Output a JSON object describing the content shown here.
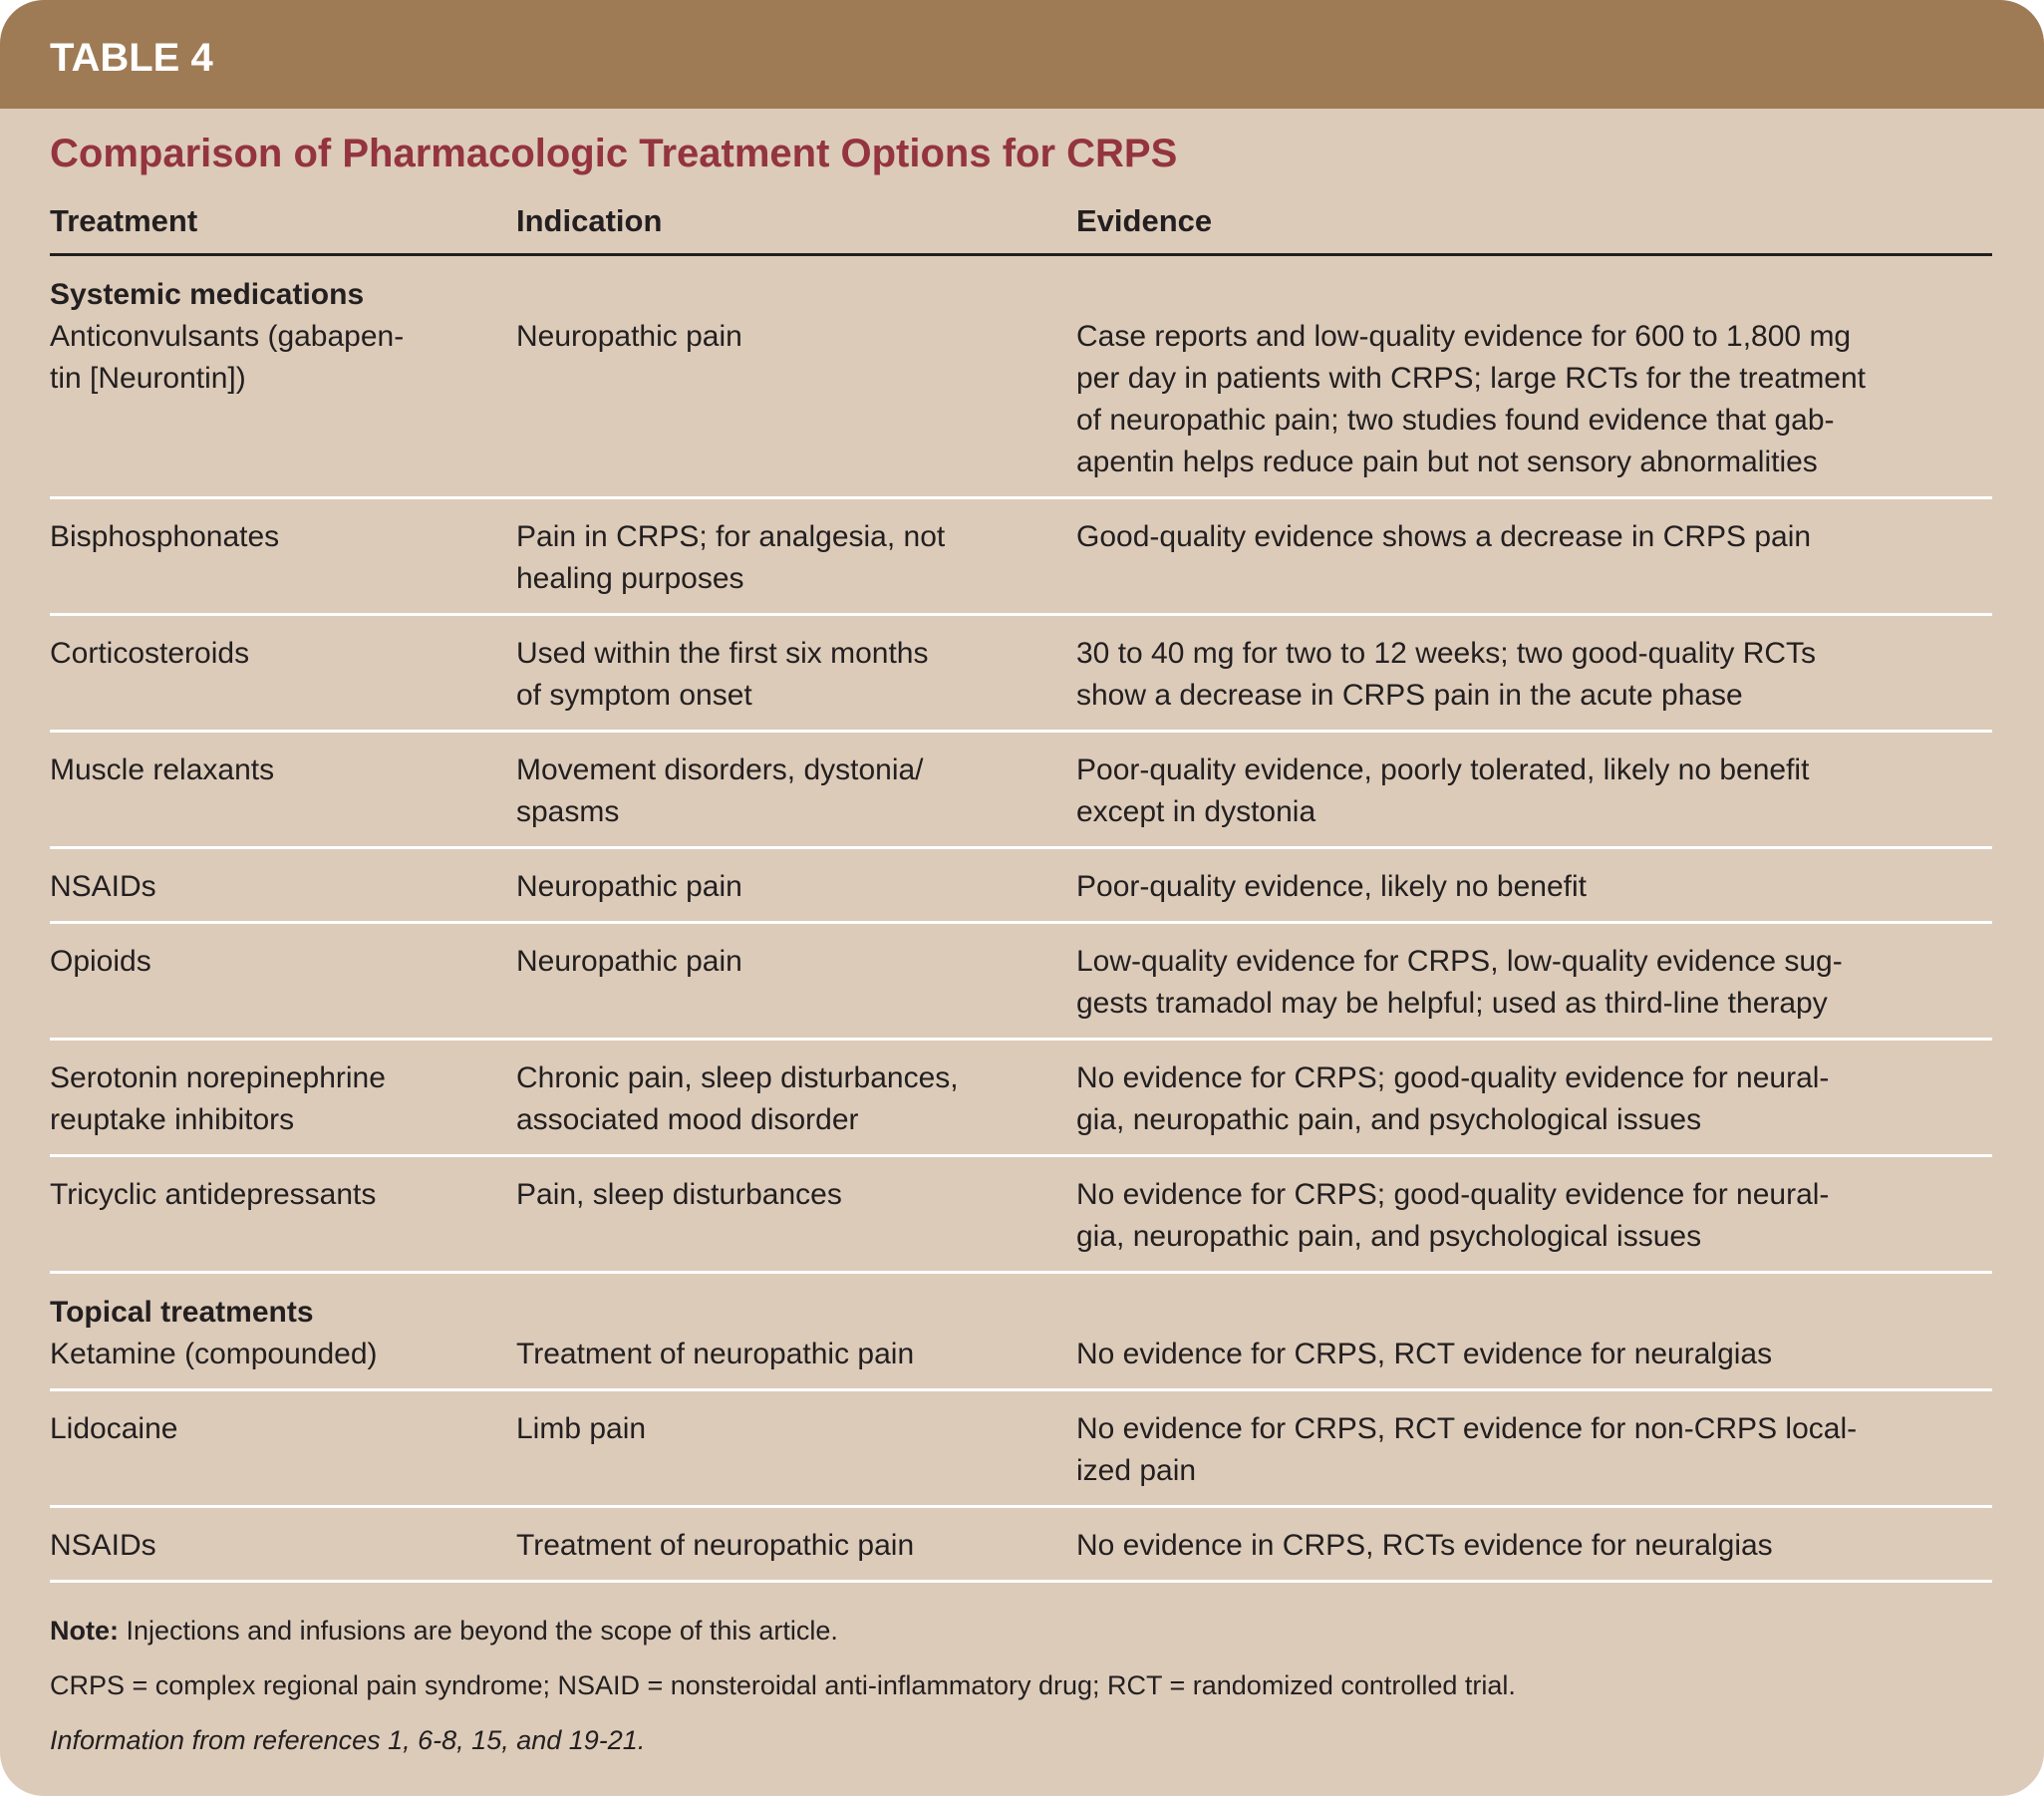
{
  "colors": {
    "band": "#9e7b55",
    "background": "#dccbb9",
    "title": "#93343f",
    "text": "#231f20"
  },
  "label": "TABLE 4",
  "title": "Comparison of Pharmacologic Treatment Options for CRPS",
  "headers": [
    "Treatment",
    "Indication",
    "Evidence"
  ],
  "sections": [
    {
      "name": "Systemic medications",
      "rows": [
        {
          "treatment": [
            "Anticonvulsants (gabapen-",
            "tin [Neurontin])"
          ],
          "indication": [
            "Neuropathic pain"
          ],
          "evidence": [
            "Case reports and low-quality evidence for 600 to 1,800 mg",
            "per day in patients with CRPS; large RCTs for the treatment",
            "of neuropathic pain; two studies found evidence that gab-",
            "apentin helps reduce pain but not sensory abnormalities"
          ]
        },
        {
          "treatment": [
            "Bisphosphonates"
          ],
          "indication": [
            "Pain in CRPS; for analgesia, not",
            "healing purposes"
          ],
          "evidence": [
            "Good-quality evidence shows a decrease in CRPS pain"
          ]
        },
        {
          "treatment": [
            "Corticosteroids"
          ],
          "indication": [
            "Used within the first six months",
            "of symptom onset"
          ],
          "evidence": [
            "30 to 40 mg for two to 12 weeks; two good-quality RCTs",
            "show a decrease in CRPS pain in the acute phase"
          ]
        },
        {
          "treatment": [
            "Muscle relaxants"
          ],
          "indication": [
            "Movement disorders, dystonia/",
            "spasms"
          ],
          "evidence": [
            "Poor-quality evidence, poorly tolerated, likely no benefit",
            "except in dystonia"
          ]
        },
        {
          "treatment": [
            "NSAIDs"
          ],
          "indication": [
            "Neuropathic pain"
          ],
          "evidence": [
            "Poor-quality evidence, likely no benefit"
          ]
        },
        {
          "treatment": [
            "Opioids"
          ],
          "indication": [
            "Neuropathic pain"
          ],
          "evidence": [
            "Low-quality evidence for CRPS, low-quality evidence sug-",
            "gests tramadol may be helpful; used as third-line therapy"
          ]
        },
        {
          "treatment": [
            "Serotonin norepinephrine",
            "reuptake inhibitors"
          ],
          "indication": [
            "Chronic pain, sleep disturbances,",
            "associated mood disorder"
          ],
          "evidence": [
            "No evidence for CRPS; good-quality evidence for neural-",
            "gia, neuropathic pain, and psychological issues"
          ]
        },
        {
          "treatment": [
            "Tricyclic antidepressants"
          ],
          "indication": [
            "Pain, sleep disturbances"
          ],
          "evidence": [
            "No evidence for CRPS; good-quality evidence for neural-",
            "gia, neuropathic pain, and psychological issues"
          ]
        }
      ]
    },
    {
      "name": "Topical treatments",
      "rows": [
        {
          "treatment": [
            "Ketamine (compounded)"
          ],
          "indication": [
            "Treatment of neuropathic pain"
          ],
          "evidence": [
            "No evidence for CRPS, RCT evidence for neuralgias"
          ]
        },
        {
          "treatment": [
            "Lidocaine"
          ],
          "indication": [
            "Limb pain"
          ],
          "evidence": [
            "No evidence for CRPS, RCT evidence for non-CRPS local-",
            "ized pain"
          ]
        },
        {
          "treatment": [
            "NSAIDs"
          ],
          "indication": [
            "Treatment of neuropathic pain"
          ],
          "evidence": [
            "No evidence in CRPS, RCTs evidence for neuralgias"
          ]
        }
      ]
    }
  ],
  "notes": {
    "note_label": "Note:",
    "note_text": " Injections and infusions are beyond the scope of this article.",
    "abbreviations": "CRPS = complex regional pain syndrome; NSAID = nonsteroidal anti-inflammatory drug; RCT = randomized controlled trial.",
    "source": "Information from references 1, 6-8, 15, and 19-21."
  }
}
